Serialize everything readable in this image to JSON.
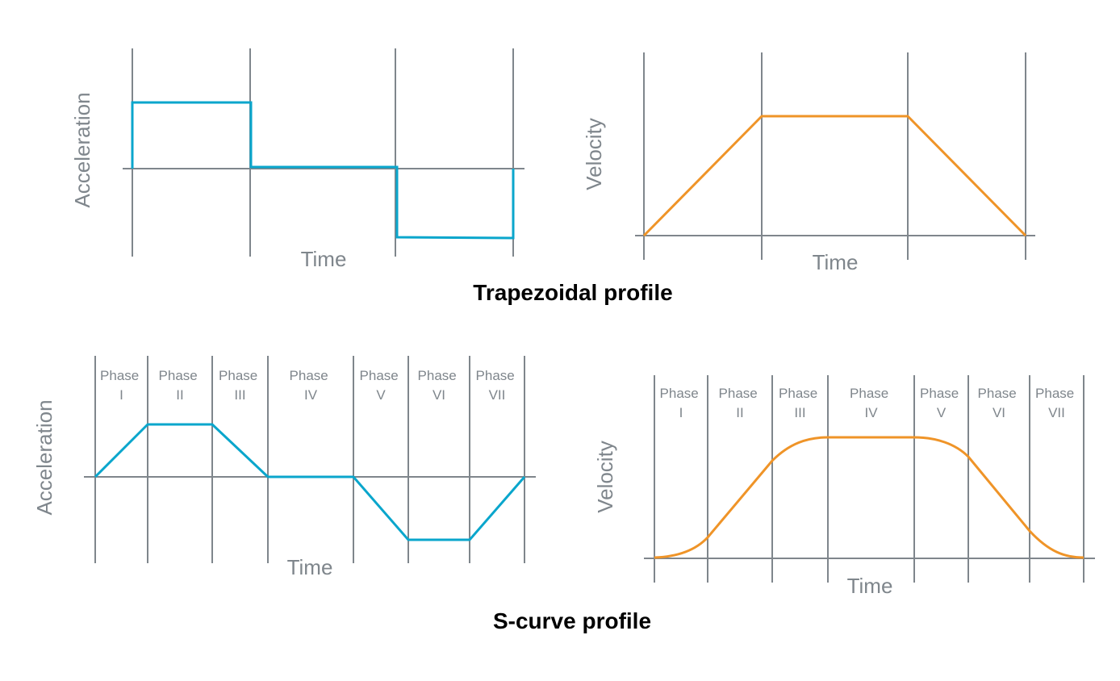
{
  "colors": {
    "grid": "#7f868c",
    "acceleration_line": "#0aa6cc",
    "velocity_line": "#ef9428",
    "title": "#000000"
  },
  "trapezoidal": {
    "title": "Trapezoidal profile",
    "acceleration": {
      "ylabel": "Acceleration",
      "xlabel": "Time"
    },
    "velocity": {
      "ylabel": "Velocity",
      "xlabel": "Time"
    }
  },
  "scurve": {
    "title": "S-curve profile",
    "phases": [
      {
        "word": "Phase",
        "numeral": "I"
      },
      {
        "word": "Phase",
        "numeral": "II"
      },
      {
        "word": "Phase",
        "numeral": "III"
      },
      {
        "word": "Phase",
        "numeral": "IV"
      },
      {
        "word": "Phase",
        "numeral": "V"
      },
      {
        "word": "Phase",
        "numeral": "VI"
      },
      {
        "word": "Phase",
        "numeral": "VII"
      }
    ],
    "acceleration": {
      "ylabel": "Acceleration",
      "xlabel": "Time"
    },
    "velocity": {
      "ylabel": "Velocity",
      "xlabel": "Time"
    }
  }
}
